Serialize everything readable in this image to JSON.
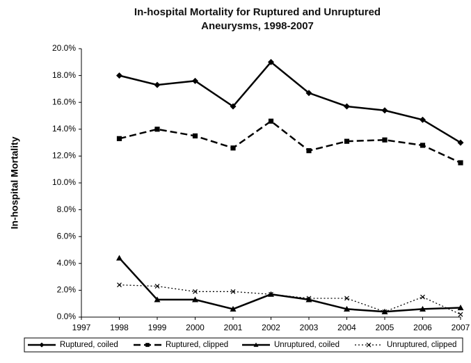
{
  "chart_data": {
    "type": "line",
    "title": "In-hospital Mortality for Ruptured and Unruptured Aneurysms, 1998-2007",
    "y_label": "In-hospital Mortality",
    "x": [
      1998,
      1999,
      2000,
      2001,
      2002,
      2003,
      2004,
      2005,
      2006,
      2007
    ],
    "xlim": [
      1997,
      2007
    ],
    "xticks": [
      1997,
      1998,
      1999,
      2000,
      2001,
      2002,
      2003,
      2004,
      2005,
      2006,
      2007
    ],
    "ylim": [
      0,
      20
    ],
    "yticks": [
      {
        "value": 0,
        "label": "0.0%"
      },
      {
        "value": 2,
        "label": "2.0%"
      },
      {
        "value": 4,
        "label": "4.0%"
      },
      {
        "value": 6,
        "label": "6.0%"
      },
      {
        "value": 8,
        "label": "8.0%"
      },
      {
        "value": 10,
        "label": "10.0%"
      },
      {
        "value": 12,
        "label": "12.0%"
      },
      {
        "value": 14,
        "label": "14.0%"
      },
      {
        "value": 16,
        "label": "16.0%"
      },
      {
        "value": 18,
        "label": "18.0%"
      },
      {
        "value": 20,
        "label": "20.0%"
      }
    ],
    "grid": false,
    "legend": "bottom",
    "series": [
      {
        "name": "Ruptured, coiled",
        "color": "#000000",
        "marker": "diamond",
        "dash": "solid",
        "values": [
          18.0,
          17.3,
          17.6,
          15.7,
          19.0,
          16.7,
          15.7,
          15.4,
          14.7,
          13.0
        ]
      },
      {
        "name": "Ruptured, clipped",
        "color": "#000000",
        "marker": "square",
        "dash": "dashed",
        "values": [
          13.3,
          14.0,
          13.5,
          12.6,
          14.6,
          12.4,
          13.1,
          13.2,
          12.8,
          11.5
        ]
      },
      {
        "name": "Unruptured, coiled",
        "color": "#000000",
        "marker": "triangle",
        "dash": "solid",
        "values": [
          4.4,
          1.3,
          1.3,
          0.6,
          1.7,
          1.3,
          0.6,
          0.4,
          0.6,
          0.7
        ]
      },
      {
        "name": "Unruptured, clipped",
        "color": "#000000",
        "marker": "x",
        "dash": "dotted",
        "values": [
          2.4,
          2.3,
          1.9,
          1.9,
          1.7,
          1.4,
          1.4,
          0.4,
          1.5,
          0.2
        ]
      }
    ]
  }
}
